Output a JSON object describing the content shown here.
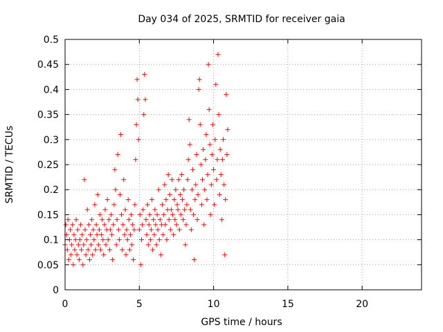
{
  "chart_data": {
    "type": "scatter",
    "title": "Day 034 of 2025, SRMTID for receiver gaia",
    "xlabel": "GPS time / hours",
    "ylabel": "SRMTID / TECUs",
    "xlim": [
      0,
      24
    ],
    "ylim": [
      0,
      0.5
    ],
    "xticks": [
      0,
      5,
      10,
      15,
      20
    ],
    "xtick_labels": [
      "0",
      "5",
      "10",
      "15",
      "20"
    ],
    "yticks": [
      0,
      0.05,
      0.1,
      0.15,
      0.2,
      0.25,
      0.3,
      0.35,
      0.4,
      0.45,
      0.5
    ],
    "ytick_labels": [
      "0",
      "0.05",
      "0.1",
      "0.15",
      "0.2",
      "0.25",
      "0.3",
      "0.35",
      "0.4",
      "0.45",
      "0.5"
    ],
    "grid": true,
    "marker": "+",
    "color": "#ff0000",
    "series": [
      {
        "name": "SRMTID",
        "points": [
          [
            0.0,
            0.09
          ],
          [
            0.05,
            0.13
          ],
          [
            0.1,
            0.11
          ],
          [
            0.15,
            0.08
          ],
          [
            0.2,
            0.14
          ],
          [
            0.25,
            0.06
          ],
          [
            0.3,
            0.1
          ],
          [
            0.35,
            0.12
          ],
          [
            0.4,
            0.07
          ],
          [
            0.45,
            0.09
          ],
          [
            0.5,
            0.13
          ],
          [
            0.55,
            0.05
          ],
          [
            0.6,
            0.11
          ],
          [
            0.65,
            0.08
          ],
          [
            0.7,
            0.1
          ],
          [
            0.75,
            0.14
          ],
          [
            0.8,
            0.07
          ],
          [
            0.85,
            0.12
          ],
          [
            0.9,
            0.09
          ],
          [
            0.95,
            0.06
          ],
          [
            1.0,
            0.1
          ],
          [
            1.05,
            0.13
          ],
          [
            1.1,
            0.08
          ],
          [
            1.15,
            0.11
          ],
          [
            1.2,
            0.05
          ],
          [
            1.25,
            0.09
          ],
          [
            1.3,
            0.22
          ],
          [
            1.35,
            0.12
          ],
          [
            1.4,
            0.07
          ],
          [
            1.45,
            0.1
          ],
          [
            1.5,
            0.16
          ],
          [
            1.55,
            0.08
          ],
          [
            1.6,
            0.13
          ],
          [
            1.65,
            0.06
          ],
          [
            1.7,
            0.11
          ],
          [
            1.75,
            0.09
          ],
          [
            1.8,
            0.14
          ],
          [
            1.85,
            0.07
          ],
          [
            1.9,
            0.12
          ],
          [
            1.95,
            0.1
          ],
          [
            2.0,
            0.17
          ],
          [
            2.05,
            0.08
          ],
          [
            2.1,
            0.13
          ],
          [
            2.15,
            0.11
          ],
          [
            2.2,
            0.19
          ],
          [
            2.25,
            0.09
          ],
          [
            2.3,
            0.12
          ],
          [
            2.35,
            0.15
          ],
          [
            2.4,
            0.08
          ],
          [
            2.45,
            0.11
          ],
          [
            2.5,
            0.14
          ],
          [
            2.55,
            0.1
          ],
          [
            2.6,
            0.07
          ],
          [
            2.65,
            0.13
          ],
          [
            2.7,
            0.16
          ],
          [
            2.75,
            0.09
          ],
          [
            2.8,
            0.12
          ],
          [
            2.85,
            0.18
          ],
          [
            2.9,
            0.1
          ],
          [
            2.95,
            0.14
          ],
          [
            3.0,
            0.08
          ],
          [
            3.05,
            0.12
          ],
          [
            3.1,
            0.15
          ],
          [
            3.15,
            0.11
          ],
          [
            3.2,
            0.06
          ],
          [
            3.25,
            0.13
          ],
          [
            3.3,
            0.17
          ],
          [
            3.35,
            0.24
          ],
          [
            3.4,
            0.2
          ],
          [
            3.45,
            0.09
          ],
          [
            3.5,
            0.14
          ],
          [
            3.55,
            0.27
          ],
          [
            3.6,
            0.12
          ],
          [
            3.65,
            0.1
          ],
          [
            3.7,
            0.19
          ],
          [
            3.75,
            0.31
          ],
          [
            3.8,
            0.15
          ],
          [
            3.85,
            0.08
          ],
          [
            3.9,
            0.13
          ],
          [
            3.95,
            0.22
          ],
          [
            4.0,
            0.11
          ],
          [
            4.05,
            0.16
          ],
          [
            4.1,
            0.07
          ],
          [
            4.15,
            0.12
          ],
          [
            4.2,
            0.1
          ],
          [
            4.25,
            0.18
          ],
          [
            4.3,
            0.14
          ],
          [
            4.35,
            0.08
          ],
          [
            4.4,
            0.11
          ],
          [
            4.45,
            0.15
          ],
          [
            4.5,
            0.09
          ],
          [
            4.55,
            0.13
          ],
          [
            4.6,
            0.06
          ],
          [
            4.65,
            0.12
          ],
          [
            4.7,
            0.17
          ],
          [
            4.75,
            0.26
          ],
          [
            4.8,
            0.33
          ],
          [
            4.85,
            0.42
          ],
          [
            4.9,
            0.38
          ],
          [
            4.95,
            0.3
          ],
          [
            5.0,
            0.12
          ],
          [
            5.05,
            0.15
          ],
          [
            5.1,
            0.05
          ],
          [
            5.15,
            0.1
          ],
          [
            5.2,
            0.13
          ],
          [
            5.25,
            0.16
          ],
          [
            5.3,
            0.35
          ],
          [
            5.35,
            0.43
          ],
          [
            5.4,
            0.38
          ],
          [
            5.45,
            0.14
          ],
          [
            5.5,
            0.11
          ],
          [
            5.55,
            0.17
          ],
          [
            5.6,
            0.09
          ],
          [
            5.65,
            0.13
          ],
          [
            5.7,
            0.15
          ],
          [
            5.75,
            0.1
          ],
          [
            5.8,
            0.12
          ],
          [
            5.85,
            0.18
          ],
          [
            5.9,
            0.08
          ],
          [
            5.95,
            0.14
          ],
          [
            6.0,
            0.11
          ],
          [
            6.05,
            0.16
          ],
          [
            6.1,
            0.13
          ],
          [
            6.15,
            0.09
          ],
          [
            6.2,
            0.15
          ],
          [
            6.25,
            0.12
          ],
          [
            6.3,
            0.2
          ],
          [
            6.35,
            0.1
          ],
          [
            6.4,
            0.14
          ],
          [
            6.45,
            0.07
          ],
          [
            6.5,
            0.13
          ],
          [
            6.55,
            0.17
          ],
          [
            6.6,
            0.11
          ],
          [
            6.65,
            0.15
          ],
          [
            6.7,
            0.21
          ],
          [
            6.75,
            0.13
          ],
          [
            6.8,
            0.18
          ],
          [
            6.85,
            0.1
          ],
          [
            6.9,
            0.16
          ],
          [
            6.95,
            0.23
          ],
          [
            7.0,
            0.14
          ],
          [
            7.05,
            0.19
          ],
          [
            7.1,
            0.12
          ],
          [
            7.15,
            0.16
          ],
          [
            7.2,
            0.22
          ],
          [
            7.25,
            0.15
          ],
          [
            7.3,
            0.11
          ],
          [
            7.35,
            0.18
          ],
          [
            7.4,
            0.14
          ],
          [
            7.45,
            0.2
          ],
          [
            7.5,
            0.13
          ],
          [
            7.55,
            0.17
          ],
          [
            7.6,
            0.16
          ],
          [
            7.65,
            0.22
          ],
          [
            7.7,
            0.12
          ],
          [
            7.75,
            0.19
          ],
          [
            7.8,
            0.15
          ],
          [
            7.85,
            0.23
          ],
          [
            7.9,
            0.18
          ],
          [
            7.95,
            0.14
          ],
          [
            8.0,
            0.2
          ],
          [
            8.05,
            0.16
          ],
          [
            8.1,
            0.09
          ],
          [
            8.15,
            0.13
          ],
          [
            8.2,
            0.17
          ],
          [
            8.25,
            0.22
          ],
          [
            8.3,
            0.26
          ],
          [
            8.35,
            0.34
          ],
          [
            8.4,
            0.29
          ],
          [
            8.45,
            0.16
          ],
          [
            8.5,
            0.12
          ],
          [
            8.55,
            0.2
          ],
          [
            8.6,
            0.24
          ],
          [
            8.65,
            0.15
          ],
          [
            8.7,
            0.06
          ],
          [
            8.75,
            0.18
          ],
          [
            8.8,
            0.21
          ],
          [
            8.85,
            0.27
          ],
          [
            8.9,
            0.14
          ],
          [
            8.95,
            0.19
          ],
          [
            9.0,
            0.4
          ],
          [
            9.05,
            0.42
          ],
          [
            9.1,
            0.33
          ],
          [
            9.15,
            0.25
          ],
          [
            9.2,
            0.17
          ],
          [
            9.25,
            0.22
          ],
          [
            9.3,
            0.28
          ],
          [
            9.35,
            0.13
          ],
          [
            9.4,
            0.2
          ],
          [
            9.45,
            0.26
          ],
          [
            9.5,
            0.31
          ],
          [
            9.55,
            0.18
          ],
          [
            9.6,
            0.23
          ],
          [
            9.65,
            0.45
          ],
          [
            9.7,
            0.36
          ],
          [
            9.75,
            0.29
          ],
          [
            9.8,
            0.15
          ],
          [
            9.85,
            0.21
          ],
          [
            9.9,
            0.27
          ],
          [
            9.95,
            0.33
          ],
          [
            10.0,
            0.24
          ],
          [
            10.05,
            0.17
          ],
          [
            10.1,
            0.3
          ],
          [
            10.15,
            0.41
          ],
          [
            10.2,
            0.22
          ],
          [
            10.25,
            0.26
          ],
          [
            10.3,
            0.47
          ],
          [
            10.35,
            0.35
          ],
          [
            10.4,
            0.19
          ],
          [
            10.45,
            0.28
          ],
          [
            10.5,
            0.23
          ],
          [
            10.55,
            0.14
          ],
          [
            10.6,
            0.26
          ],
          [
            10.65,
            0.3
          ],
          [
            10.7,
            0.21
          ],
          [
            10.75,
            0.07
          ],
          [
            10.8,
            0.18
          ],
          [
            10.85,
            0.39
          ],
          [
            10.9,
            0.27
          ],
          [
            10.95,
            0.32
          ]
        ]
      }
    ]
  }
}
